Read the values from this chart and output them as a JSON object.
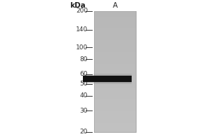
{
  "kda_label": "kDa",
  "lane_label": "A",
  "mw_markers": [
    200,
    140,
    100,
    80,
    60,
    50,
    40,
    30,
    20
  ],
  "band_kda": 55,
  "band_color": "#111111",
  "lane_gray": "#b8b8b8",
  "background_color": "#ffffff",
  "tick_label_fontsize": 6.5,
  "header_fontsize": 7.5,
  "fig_width": 3.0,
  "fig_height": 2.0,
  "dpi": 100
}
